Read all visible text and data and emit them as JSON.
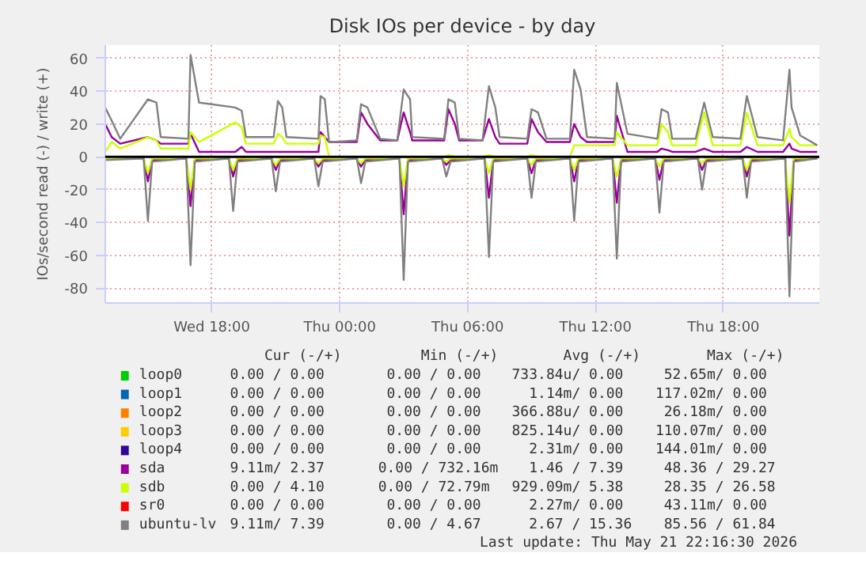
{
  "chart_data": {
    "type": "line",
    "title": "Disk IOs per device - by day",
    "ylabel": "IOs/second read (-) / write (+)",
    "xlim": [
      "2026-05-20T13:00",
      "2026-05-21T22:30"
    ],
    "ylim": [
      -89,
      68
    ],
    "xticks": [
      {
        "value": "2026-05-20T18:00",
        "label": "Wed 18:00"
      },
      {
        "value": "2026-05-21T00:00",
        "label": "Thu 00:00"
      },
      {
        "value": "2026-05-21T06:00",
        "label": "Thu 06:00"
      },
      {
        "value": "2026-05-21T12:00",
        "label": "Thu 12:00"
      },
      {
        "value": "2026-05-21T18:00",
        "label": "Thu 18:00"
      }
    ],
    "yticks": [
      -80,
      -60,
      -40,
      -20,
      0,
      20,
      40,
      60
    ],
    "grid": true,
    "legend": "bottom",
    "line_style": "solid",
    "marker": "none",
    "ref_lines": [
      {
        "axis": "y",
        "value": 0,
        "color": "#000000"
      }
    ],
    "x": [
      "2026-05-20T13:00",
      "2026-05-20T13:18",
      "2026-05-20T13:42",
      "2026-05-20T15:00",
      "2026-05-20T15:24",
      "2026-05-20T15:36",
      "2026-05-20T16:54",
      "2026-05-20T17:00",
      "2026-05-20T17:24",
      "2026-05-20T19:06",
      "2026-05-20T19:24",
      "2026-05-20T19:36",
      "2026-05-20T20:54",
      "2026-05-20T21:06",
      "2026-05-20T21:18",
      "2026-05-20T21:30",
      "2026-05-20T23:00",
      "2026-05-20T23:06",
      "2026-05-20T23:18",
      "2026-05-20T23:30",
      "2026-05-20T23:42",
      "2026-05-21T00:48",
      "2026-05-21T01:00",
      "2026-05-21T01:18",
      "2026-05-21T01:54",
      "2026-05-21T02:42",
      "2026-05-21T03:00",
      "2026-05-21T03:18",
      "2026-05-21T03:24",
      "2026-05-21T04:54",
      "2026-05-21T05:06",
      "2026-05-21T05:24",
      "2026-05-21T05:36",
      "2026-05-21T06:42",
      "2026-05-21T07:00",
      "2026-05-21T07:18",
      "2026-05-21T07:30",
      "2026-05-21T08:48",
      "2026-05-21T09:00",
      "2026-05-21T09:18",
      "2026-05-21T09:42",
      "2026-05-21T10:48",
      "2026-05-21T11:00",
      "2026-05-21T11:18",
      "2026-05-21T11:36",
      "2026-05-21T12:54",
      "2026-05-21T13:00",
      "2026-05-21T13:30",
      "2026-05-21T14:54",
      "2026-05-21T15:06",
      "2026-05-21T15:24",
      "2026-05-21T15:36",
      "2026-05-21T16:42",
      "2026-05-21T17:06",
      "2026-05-21T17:30",
      "2026-05-21T18:48",
      "2026-05-21T19:06",
      "2026-05-21T19:36",
      "2026-05-21T20:48",
      "2026-05-21T21:06",
      "2026-05-21T21:12",
      "2026-05-21T21:36",
      "2026-05-21T22:24"
    ],
    "series": [
      {
        "name": "loop0",
        "color": "#00cc00",
        "values": [
          null,
          null,
          null,
          null,
          null,
          null,
          null,
          null,
          null,
          null,
          null,
          null,
          null,
          null,
          null,
          null,
          null,
          null,
          null,
          null,
          null,
          null,
          null,
          null,
          null,
          null,
          null,
          null,
          null,
          null,
          null,
          null,
          null,
          null,
          null,
          null,
          null,
          null,
          null,
          null,
          null,
          null,
          null,
          null,
          null,
          null,
          null,
          null,
          null,
          null,
          null,
          null,
          null,
          null,
          null,
          null,
          null,
          null,
          null,
          null,
          null,
          null,
          null
        ]
      },
      {
        "name": "loop1",
        "color": "#0066b3",
        "values": [
          null,
          null,
          null,
          null,
          null,
          null,
          null,
          null,
          null,
          null,
          null,
          null,
          null,
          null,
          null,
          null,
          null,
          null,
          null,
          null,
          null,
          null,
          null,
          null,
          null,
          null,
          null,
          null,
          null,
          null,
          null,
          null,
          null,
          null,
          null,
          null,
          null,
          null,
          null,
          null,
          null,
          null,
          null,
          null,
          null,
          null,
          null,
          null,
          null,
          null,
          null,
          null,
          null,
          null,
          null,
          null,
          null,
          null,
          null,
          null,
          null,
          null,
          null
        ]
      },
      {
        "name": "loop2",
        "color": "#ff8000",
        "values": [
          null,
          null,
          null,
          null,
          null,
          null,
          null,
          null,
          null,
          null,
          null,
          null,
          null,
          null,
          null,
          null,
          null,
          null,
          null,
          null,
          null,
          null,
          null,
          null,
          null,
          null,
          null,
          null,
          null,
          null,
          null,
          null,
          null,
          null,
          null,
          null,
          null,
          null,
          null,
          null,
          null,
          null,
          null,
          null,
          null,
          null,
          null,
          null,
          null,
          null,
          null,
          null,
          null,
          null,
          null,
          null,
          null,
          null,
          null,
          null,
          null,
          null,
          null
        ]
      },
      {
        "name": "loop3",
        "color": "#ffcc00",
        "values": [
          null,
          null,
          null,
          null,
          null,
          null,
          null,
          null,
          null,
          null,
          null,
          null,
          null,
          null,
          null,
          null,
          null,
          null,
          null,
          null,
          null,
          null,
          null,
          null,
          null,
          null,
          null,
          null,
          null,
          null,
          null,
          null,
          null,
          null,
          null,
          null,
          null,
          null,
          null,
          null,
          null,
          null,
          null,
          null,
          null,
          null,
          null,
          null,
          null,
          null,
          null,
          null,
          null,
          null,
          null,
          null,
          null,
          null,
          null,
          null,
          null,
          null,
          null
        ]
      },
      {
        "name": "loop4",
        "color": "#330099",
        "values": [
          null,
          null,
          null,
          null,
          null,
          null,
          null,
          null,
          null,
          null,
          null,
          null,
          null,
          null,
          null,
          null,
          null,
          null,
          null,
          null,
          null,
          null,
          null,
          null,
          null,
          null,
          null,
          null,
          null,
          null,
          null,
          null,
          null,
          null,
          null,
          null,
          null,
          null,
          null,
          null,
          null,
          null,
          null,
          null,
          null,
          null,
          null,
          null,
          null,
          null,
          null,
          null,
          null,
          null,
          null,
          null,
          null,
          null,
          null,
          null,
          null,
          null,
          null
        ]
      },
      {
        "color": "#990099",
        "x": [
          "2026-05-20T13:00",
          "2026-05-20T14:48",
          "2026-05-20T15:00",
          "2026-05-20T15:12",
          "2026-05-20T16:48",
          "2026-05-20T17:00",
          "2026-05-20T17:12",
          "2026-05-20T18:48",
          "2026-05-20T19:00",
          "2026-05-20T19:12",
          "2026-05-20T20:48",
          "2026-05-20T21:00",
          "2026-05-20T21:12",
          "2026-05-20T22:48",
          "2026-05-20T23:00",
          "2026-05-20T23:12",
          "2026-05-21T00:48",
          "2026-05-21T01:00",
          "2026-05-21T01:12",
          "2026-05-21T02:48",
          "2026-05-21T03:00",
          "2026-05-21T03:12",
          "2026-05-21T04:48",
          "2026-05-21T05:00",
          "2026-05-21T05:12",
          "2026-05-21T06:48",
          "2026-05-21T07:00",
          "2026-05-21T07:12",
          "2026-05-21T08:48",
          "2026-05-21T09:00",
          "2026-05-21T09:12",
          "2026-05-21T10:48",
          "2026-05-21T11:00",
          "2026-05-21T11:12",
          "2026-05-21T12:48",
          "2026-05-21T13:00",
          "2026-05-21T13:12",
          "2026-05-21T14:48",
          "2026-05-21T15:00",
          "2026-05-21T15:12",
          "2026-05-21T16:48",
          "2026-05-21T17:00",
          "2026-05-21T17:12",
          "2026-05-21T18:54",
          "2026-05-21T19:06",
          "2026-05-21T19:18",
          "2026-05-21T20:54",
          "2026-05-21T21:06",
          "2026-05-21T21:18",
          "2026-05-21T22:24"
        ],
        "values": [
          -1,
          -1,
          -15,
          -2,
          -1,
          -30,
          -2,
          -1,
          -12,
          -2,
          -1,
          -8,
          -2,
          -1,
          -6,
          -2,
          -1,
          -6,
          -2,
          -1,
          -35,
          -2,
          -1,
          -5,
          -2,
          -1,
          -25,
          -2,
          -1,
          -10,
          -2,
          -1,
          -15,
          -2,
          -1,
          -28,
          -2,
          -1,
          -14,
          -2,
          -1,
          -8,
          -2,
          -1,
          -12,
          -2,
          -1,
          -48,
          -2,
          -1
        ]
      },
      {
        "name": "sda",
        "color": "#990099",
        "values": [
          20,
          12,
          8,
          12,
          10,
          8,
          8,
          14,
          3,
          3,
          6,
          3,
          3,
          3,
          3,
          3,
          3,
          15,
          12,
          9,
          9,
          9,
          27,
          20,
          10,
          10,
          27,
          15,
          10,
          10,
          29,
          20,
          10,
          10,
          23,
          12,
          8,
          8,
          23,
          15,
          9,
          9,
          20,
          12,
          9,
          9,
          25,
          3,
          3,
          5,
          4,
          3,
          3,
          5,
          3,
          3,
          6,
          3,
          3,
          8,
          5,
          3,
          3
        ]
      },
      {
        "color": "#ccff00",
        "x": [
          "2026-05-20T13:00",
          "2026-05-20T14:48",
          "2026-05-20T15:00",
          "2026-05-20T15:12",
          "2026-05-20T16:48",
          "2026-05-20T17:00",
          "2026-05-20T17:12",
          "2026-05-20T18:48",
          "2026-05-20T19:00",
          "2026-05-20T19:12",
          "2026-05-20T20:48",
          "2026-05-20T21:00",
          "2026-05-20T21:12",
          "2026-05-20T22:48",
          "2026-05-20T23:00",
          "2026-05-20T23:12",
          "2026-05-21T00:48",
          "2026-05-21T01:00",
          "2026-05-21T01:12",
          "2026-05-21T02:48",
          "2026-05-21T03:00",
          "2026-05-21T03:12",
          "2026-05-21T04:48",
          "2026-05-21T05:00",
          "2026-05-21T05:12",
          "2026-05-21T06:48",
          "2026-05-21T07:00",
          "2026-05-21T07:12",
          "2026-05-21T08:48",
          "2026-05-21T09:00",
          "2026-05-21T09:12",
          "2026-05-21T10:48",
          "2026-05-21T11:00",
          "2026-05-21T11:12",
          "2026-05-21T12:48",
          "2026-05-21T13:00",
          "2026-05-21T13:12",
          "2026-05-21T14:48",
          "2026-05-21T15:00",
          "2026-05-21T15:12",
          "2026-05-21T16:48",
          "2026-05-21T17:00",
          "2026-05-21T17:12",
          "2026-05-21T18:54",
          "2026-05-21T19:06",
          "2026-05-21T19:18",
          "2026-05-21T20:54",
          "2026-05-21T21:06",
          "2026-05-21T21:18",
          "2026-05-21T22:24"
        ],
        "values": [
          -1,
          -1,
          -10,
          -1,
          -1,
          -20,
          -1,
          -1,
          -8,
          -1,
          -1,
          -5,
          -1,
          -1,
          -4,
          -1,
          -1,
          -4,
          -1,
          -1,
          -18,
          -1,
          -1,
          -3,
          -1,
          -1,
          -10,
          -1,
          -1,
          -5,
          -1,
          -1,
          -8,
          -1,
          -1,
          -12,
          -1,
          -1,
          -6,
          -1,
          -1,
          -4,
          -1,
          -1,
          -8,
          -1,
          -1,
          -28,
          -1,
          -1
        ]
      },
      {
        "name": "sdb",
        "color": "#ccff00",
        "values": [
          3,
          9,
          5,
          12,
          10,
          5,
          5,
          15,
          9,
          21,
          18,
          8,
          8,
          14,
          12,
          8,
          8,
          13,
          12,
          0,
          0,
          0,
          0,
          0,
          0,
          0,
          0,
          0,
          0,
          0,
          1,
          0,
          0,
          0,
          1,
          0,
          0,
          0,
          1,
          0,
          0,
          0,
          7,
          7,
          7,
          7,
          15,
          7,
          7,
          20,
          15,
          7,
          7,
          27,
          7,
          7,
          27,
          7,
          7,
          17,
          12,
          7,
          7
        ]
      },
      {
        "name": "sr0",
        "color": "#ff0000",
        "values": [
          null,
          null,
          null,
          null,
          null,
          null,
          null,
          null,
          null,
          null,
          null,
          null,
          null,
          null,
          null,
          null,
          null,
          null,
          null,
          null,
          null,
          null,
          null,
          null,
          null,
          null,
          null,
          null,
          null,
          null,
          null,
          null,
          null,
          null,
          null,
          null,
          null,
          null,
          null,
          null,
          null,
          null,
          null,
          null,
          null,
          null,
          null,
          null,
          null,
          null,
          null,
          null,
          null,
          null,
          null,
          null,
          null,
          null,
          null,
          null,
          null,
          null,
          null
        ]
      },
      {
        "color": "#808080",
        "x": [
          "2026-05-20T13:00",
          "2026-05-20T14:48",
          "2026-05-20T15:00",
          "2026-05-20T15:12",
          "2026-05-20T16:48",
          "2026-05-20T17:00",
          "2026-05-20T17:12",
          "2026-05-20T18:48",
          "2026-05-20T19:00",
          "2026-05-20T19:12",
          "2026-05-20T20:48",
          "2026-05-20T21:00",
          "2026-05-20T21:12",
          "2026-05-20T22:48",
          "2026-05-20T23:00",
          "2026-05-20T23:12",
          "2026-05-21T00:48",
          "2026-05-21T01:00",
          "2026-05-21T01:12",
          "2026-05-21T02:48",
          "2026-05-21T03:00",
          "2026-05-21T03:12",
          "2026-05-21T04:48",
          "2026-05-21T05:00",
          "2026-05-21T05:12",
          "2026-05-21T06:48",
          "2026-05-21T07:00",
          "2026-05-21T07:12",
          "2026-05-21T08:48",
          "2026-05-21T09:00",
          "2026-05-21T09:12",
          "2026-05-21T10:48",
          "2026-05-21T11:00",
          "2026-05-21T11:12",
          "2026-05-21T12:48",
          "2026-05-21T13:00",
          "2026-05-21T13:12",
          "2026-05-21T14:48",
          "2026-05-21T15:00",
          "2026-05-21T15:12",
          "2026-05-21T16:48",
          "2026-05-21T17:00",
          "2026-05-21T17:12",
          "2026-05-21T18:54",
          "2026-05-21T19:06",
          "2026-05-21T19:18",
          "2026-05-21T20:54",
          "2026-05-21T21:06",
          "2026-05-21T21:18",
          "2026-05-21T22:24"
        ],
        "values": [
          -2,
          -1,
          -39,
          -3,
          -1,
          -66,
          -3,
          -1,
          -33,
          -3,
          -1,
          -21,
          -3,
          -1,
          -18,
          -3,
          -1,
          -16,
          -3,
          -1,
          -75,
          -3,
          -1,
          -12,
          -3,
          -1,
          -61,
          -3,
          -1,
          -25,
          -3,
          -1,
          -39,
          -3,
          -1,
          -62,
          -3,
          -1,
          -34,
          -3,
          -1,
          -20,
          -3,
          -1,
          -25,
          -3,
          -1,
          -85,
          -3,
          -1
        ]
      },
      {
        "name": "ubuntu-lv",
        "color": "#808080",
        "values": [
          30,
          22,
          11,
          35,
          33,
          12,
          11,
          62,
          33,
          30,
          28,
          12,
          12,
          34,
          30,
          12,
          11,
          37,
          35,
          9,
          9,
          10,
          32,
          30,
          11,
          10,
          41,
          35,
          12,
          11,
          35,
          33,
          11,
          10,
          43,
          30,
          12,
          11,
          29,
          27,
          11,
          11,
          53,
          41,
          12,
          11,
          45,
          14,
          11,
          29,
          27,
          11,
          11,
          33,
          12,
          11,
          37,
          12,
          10,
          53,
          30,
          13,
          7
        ]
      }
    ],
    "annotations": [
      "Cur (-/+)",
      "Min (-/+)",
      "Avg (-/+)",
      "Max (-/+)",
      "0.00 /   0.00",
      "0.00 /   0.00",
      "733.84u/   0.00",
      "52.65m/   0.00",
      "0.00 /   0.00",
      "0.00 /   0.00",
      "1.14m/   0.00",
      "117.02m/   0.00",
      "0.00 /   0.00",
      "0.00 /   0.00",
      "366.88u/   0.00",
      "26.18m/   0.00",
      "0.00 /   0.00",
      "0.00 /   0.00",
      "825.14u/   0.00",
      "110.07m/   0.00",
      "0.00 /   0.00",
      "0.00 /   0.00",
      "2.31m/   0.00",
      "144.01m/   0.00",
      "9.11m/   2.37",
      "0.00 / 732.16m",
      "1.46 /   7.39",
      "48.36 /  29.27",
      "0.00 /   4.10",
      "0.00 /  72.79m",
      "929.09m/   5.38",
      "28.35 /  26.58",
      "0.00 /   0.00",
      "0.00 /   0.00",
      "2.27m/   0.00",
      "43.11m/   0.00",
      "9.11m/   7.39",
      "0.00 /   4.67",
      "2.67 /  15.36",
      "85.56 /  61.84",
      "Last update: Thu May 21 22:16:30 2026"
    ]
  }
}
